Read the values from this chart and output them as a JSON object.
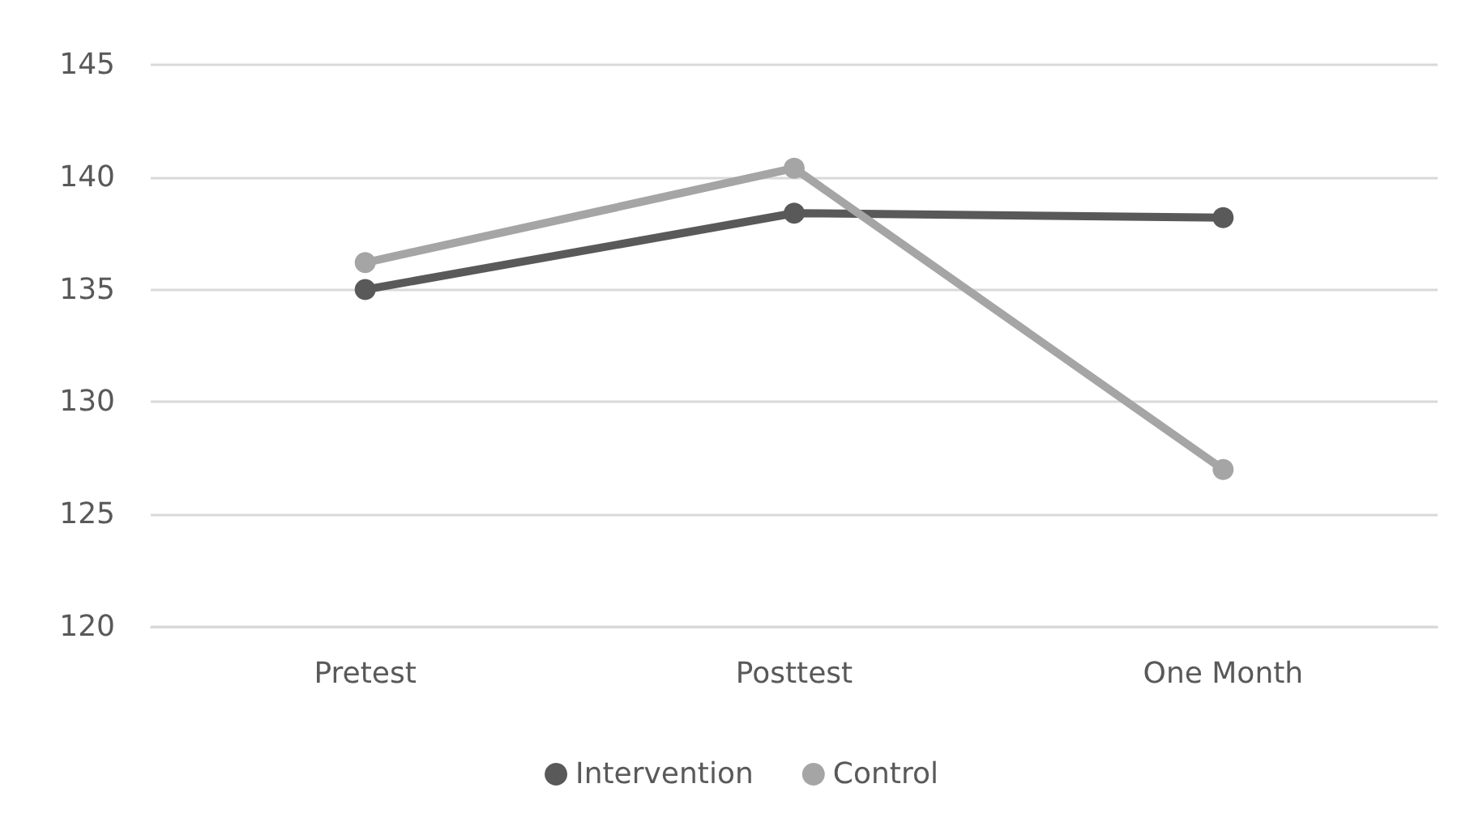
{
  "chart_data": {
    "type": "line",
    "categories": [
      "Pretest",
      "Posttest",
      "One Month"
    ],
    "series": [
      {
        "name": "Intervention",
        "color": "#595959",
        "values": [
          135.0,
          138.4,
          138.2
        ]
      },
      {
        "name": "Control",
        "color": "#a5a5a5",
        "values": [
          136.2,
          140.4,
          127.0
        ]
      }
    ],
    "ylim": [
      120,
      145
    ],
    "yticks": [
      120,
      125,
      130,
      135,
      140,
      145
    ],
    "grid": "y",
    "legend": "bottom",
    "marker": "circle",
    "line_style": "solid"
  }
}
